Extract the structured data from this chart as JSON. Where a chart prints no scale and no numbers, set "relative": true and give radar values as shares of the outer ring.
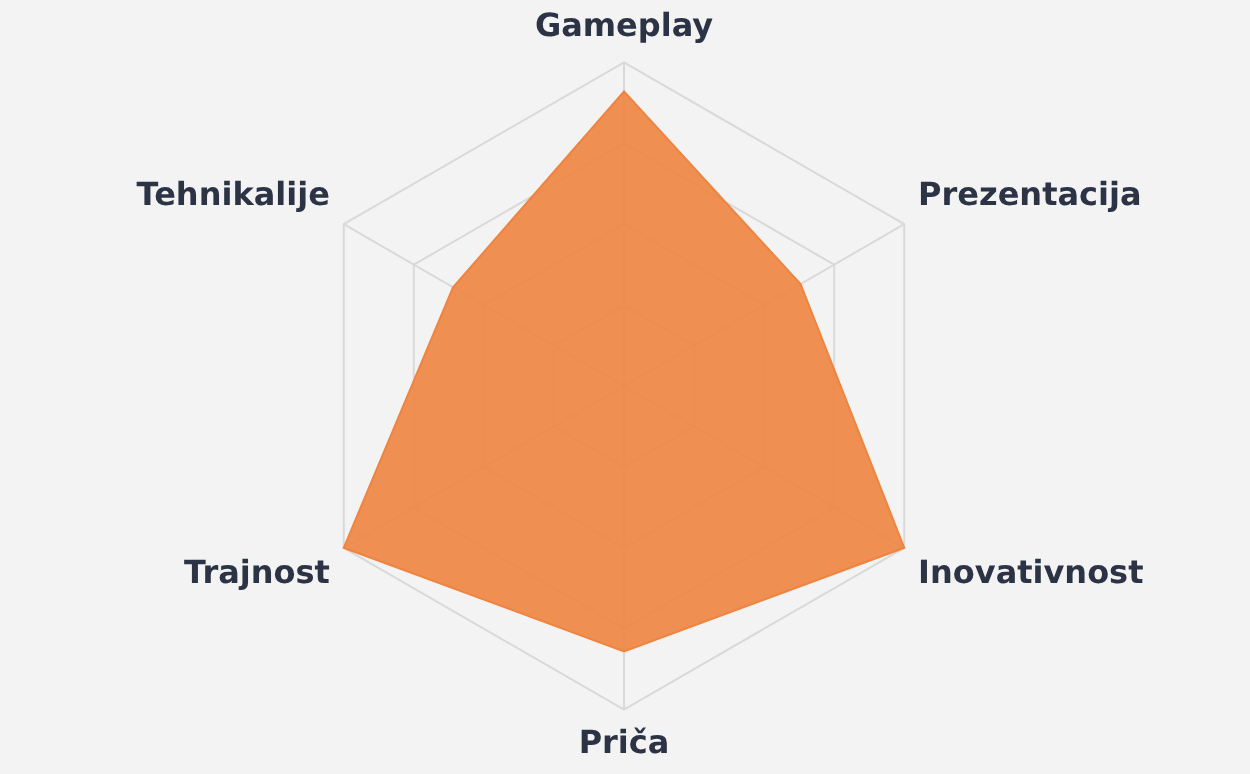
{
  "chart_data": {
    "type": "radar",
    "relative": true,
    "categories": [
      "Gameplay",
      "Prezentacija",
      "Inovativnost",
      "Priča",
      "Trajnost",
      "Tehnikalije"
    ],
    "series": [
      {
        "color": "#ef8440",
        "values": [
          0.91,
          0.63,
          1,
          0.82,
          1,
          0.61
        ]
      }
    ],
    "legend": false
  }
}
